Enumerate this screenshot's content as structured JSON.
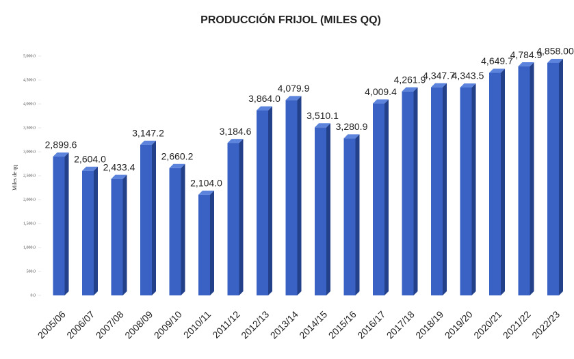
{
  "chart_data": {
    "type": "bar3d",
    "title": "PRODUCCIÓN FRIJOL (MILES QQ)",
    "y_label": "Miles de qq",
    "categories": [
      "2005/06",
      "2006/07",
      "2007/08",
      "2008/09",
      "2009/10",
      "2010/11",
      "2011/12",
      "2012/13",
      "2013/14",
      "2014/15",
      "2015/16",
      "2016/17",
      "2017/18",
      "2018/19",
      "2019/20",
      "2020/21",
      "2021/22",
      "2022/23"
    ],
    "values": [
      2899.6,
      2604.0,
      2433.4,
      3147.2,
      2660.2,
      2104.0,
      3184.6,
      3864.0,
      4079.9,
      3510.1,
      3280.9,
      4009.4,
      4261.9,
      4347.7,
      4343.5,
      4649.7,
      4784.9,
      4858.0
    ],
    "value_labels": [
      "2,899.6",
      "2,604.0",
      "2,433.4",
      "3,147.2",
      "2,660.2",
      "2,104.0",
      "3,184.6",
      "3,864.0",
      "4,079.9",
      "3,510.1",
      "3,280.9",
      "4,009.4",
      "4,261.9",
      "4,347.7",
      "4,343.5",
      "4,649.7",
      "4,784.9",
      "4,858.00"
    ],
    "color": "#3a62c4",
    "ylim": [
      0,
      5000
    ],
    "yticks": [
      {
        "value": 0,
        "label": "0.0"
      },
      {
        "value": 500,
        "label": "500.0"
      },
      {
        "value": 1000,
        "label": "1,000.0"
      },
      {
        "value": 1500,
        "label": "1,500.0"
      },
      {
        "value": 2000,
        "label": "2,000.0"
      },
      {
        "value": 2500,
        "label": "2,500.0"
      },
      {
        "value": 3000,
        "label": "3,000.0"
      },
      {
        "value": 3500,
        "label": "3,500.0"
      },
      {
        "value": 4000,
        "label": "4,000.0"
      },
      {
        "value": 4500,
        "label": "4,500.0"
      },
      {
        "value": 5000,
        "label": "5,000.0"
      }
    ]
  }
}
